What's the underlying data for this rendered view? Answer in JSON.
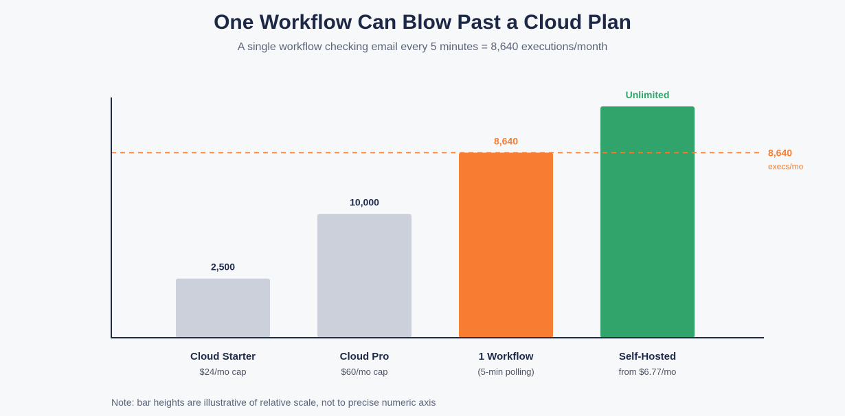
{
  "colors": {
    "axis": "#1e2a4a",
    "bar_gray": "#cbd0db",
    "bar_orange": "#f67d32",
    "bar_green": "#31a46b",
    "ref_line": "#f67d32",
    "label_dark": "#1e2a4a",
    "sublabel": "#4a5367"
  },
  "chart_data": {
    "type": "bar",
    "title": "One Workflow Can Blow Past a Cloud Plan",
    "subtitle": "A single workflow checking email every 5 minutes = 8,640 executions/month",
    "note": "Note: bar heights are illustrative of relative scale, not to precise numeric axis",
    "grid": false,
    "bars": [
      {
        "category": "Cloud Starter",
        "sublabel": "$24/mo cap",
        "label": "2,500",
        "value": 2500,
        "display_level": 0.256,
        "color": "#cbd0db",
        "label_color": "#1e2a4a"
      },
      {
        "category": "Cloud Pro",
        "sublabel": "$60/mo cap",
        "label": "10,000",
        "value": 10000,
        "display_level": 0.535,
        "color": "#cbd0db",
        "label_color": "#1e2a4a"
      },
      {
        "category": "1 Workflow",
        "sublabel": "(5-min polling)",
        "label": "8,640",
        "value": 8640,
        "display_level": 0.8,
        "color": "#f67d32",
        "label_color": "#f67d32"
      },
      {
        "category": "Self-Hosted",
        "sublabel": "from $6.77/mo",
        "label": "Unlimited",
        "value": null,
        "display_level": 1.0,
        "color": "#31a46b",
        "label_color": "#31a46b"
      }
    ],
    "reference_line": {
      "value": 8640,
      "display_level": 0.8,
      "label": "8,640",
      "sublabel": "execs/mo",
      "style": "dashed"
    }
  }
}
